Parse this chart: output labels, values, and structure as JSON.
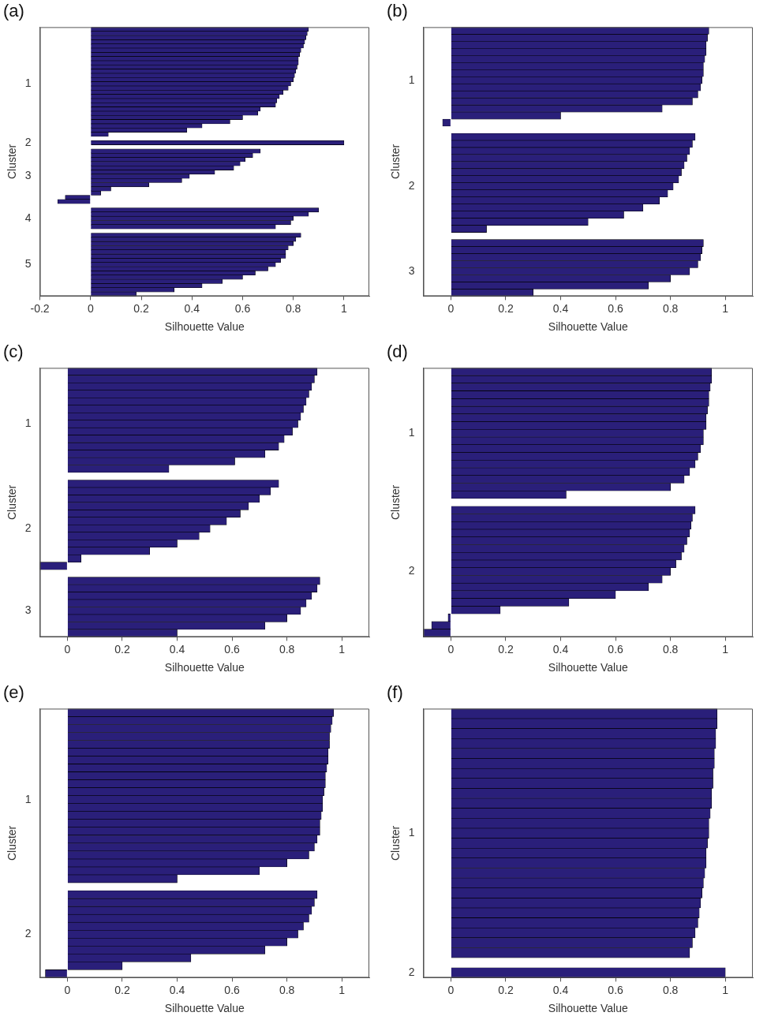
{
  "chart_data": [
    {
      "type": "bar",
      "orientation": "horizontal",
      "title": "(a)",
      "xlabel": "Silhouette Value",
      "ylabel": "Cluster",
      "color": "#2a1f7a",
      "xlim": [
        -0.2,
        1.1
      ],
      "xticks": [
        -0.2,
        0,
        0.2,
        0.4,
        0.6,
        0.8,
        1
      ],
      "categories": [
        null,
        null,
        null,
        null,
        null,
        null,
        null,
        null,
        null,
        null,
        null,
        null,
        null,
        "1",
        null,
        null,
        null,
        null,
        null,
        null,
        null,
        null,
        null,
        null,
        null,
        null,
        null,
        "2",
        null,
        null,
        null,
        null,
        null,
        null,
        null,
        "3",
        null,
        null,
        null,
        null,
        null,
        null,
        null,
        null,
        null,
        "4",
        null,
        null,
        null,
        null,
        null,
        null,
        null,
        null,
        null,
        null,
        "5",
        null,
        null,
        null,
        null,
        null,
        null,
        null
      ],
      "values": [
        0.86,
        0.855,
        0.85,
        0.845,
        0.84,
        0.83,
        0.825,
        0.82,
        0.82,
        0.815,
        0.81,
        0.805,
        0.8,
        0.79,
        0.78,
        0.76,
        0.745,
        0.735,
        0.73,
        0.67,
        0.66,
        0.6,
        0.55,
        0.44,
        0.38,
        0.07,
        null,
        1.0,
        null,
        0.67,
        0.64,
        0.61,
        0.59,
        0.565,
        0.49,
        0.39,
        0.36,
        0.23,
        0.08,
        0.04,
        -0.1,
        -0.13,
        null,
        0.9,
        0.86,
        0.8,
        0.79,
        0.73,
        null,
        0.83,
        0.81,
        0.8,
        0.78,
        0.77,
        0.77,
        0.75,
        0.73,
        0.7,
        0.65,
        0.6,
        0.52,
        0.44,
        0.33,
        0.18
      ]
    },
    {
      "type": "bar",
      "orientation": "horizontal",
      "title": "(b)",
      "xlabel": "Silhouette Value",
      "ylabel": "Cluster",
      "color": "#2a1f7a",
      "xlim": [
        -0.1,
        1.1
      ],
      "xticks": [
        0,
        0.2,
        0.4,
        0.6,
        0.8,
        1
      ],
      "categories": [
        null,
        null,
        null,
        null,
        null,
        null,
        null,
        "1",
        null,
        null,
        null,
        null,
        null,
        null,
        null,
        null,
        null,
        null,
        null,
        null,
        null,
        null,
        "2",
        null,
        null,
        null,
        null,
        null,
        null,
        null,
        null,
        null,
        null,
        null,
        "3",
        null,
        null,
        null
      ],
      "values": [
        0.94,
        0.935,
        0.93,
        0.93,
        0.925,
        0.92,
        0.92,
        0.915,
        0.91,
        0.9,
        0.88,
        0.77,
        0.4,
        -0.03,
        null,
        0.89,
        0.88,
        0.87,
        0.86,
        0.85,
        0.84,
        0.83,
        0.81,
        0.79,
        0.76,
        0.7,
        0.63,
        0.5,
        0.13,
        null,
        0.92,
        0.915,
        0.91,
        0.9,
        0.87,
        0.8,
        0.72,
        0.3
      ]
    },
    {
      "type": "bar",
      "orientation": "horizontal",
      "title": "(c)",
      "xlabel": "Silhouette Value",
      "ylabel": "Cluster",
      "color": "#2a1f7a",
      "xlim": [
        -0.1,
        1.1
      ],
      "xticks": [
        0,
        0.2,
        0.4,
        0.6,
        0.8,
        1
      ],
      "categories": [
        null,
        null,
        null,
        null,
        null,
        null,
        null,
        "1",
        null,
        null,
        null,
        null,
        null,
        null,
        null,
        null,
        null,
        null,
        null,
        null,
        null,
        "2",
        null,
        null,
        null,
        null,
        null,
        null,
        null,
        null,
        null,
        null,
        "3",
        null,
        null,
        null
      ],
      "values": [
        0.91,
        0.9,
        0.89,
        0.88,
        0.87,
        0.86,
        0.85,
        0.84,
        0.82,
        0.79,
        0.77,
        0.72,
        0.61,
        0.37,
        null,
        0.77,
        0.74,
        0.7,
        0.66,
        0.63,
        0.58,
        0.52,
        0.48,
        0.4,
        0.3,
        0.05,
        -0.1,
        null,
        0.92,
        0.91,
        0.89,
        0.87,
        0.85,
        0.8,
        0.72,
        0.4
      ]
    },
    {
      "type": "bar",
      "orientation": "horizontal",
      "title": "(d)",
      "xlabel": "Silhouette Value",
      "ylabel": "Cluster",
      "color": "#2a1f7a",
      "xlim": [
        -0.1,
        1.1
      ],
      "xticks": [
        0,
        0.2,
        0.4,
        0.6,
        0.8,
        1
      ],
      "categories": [
        null,
        null,
        null,
        null,
        null,
        null,
        null,
        null,
        "1",
        null,
        null,
        null,
        null,
        null,
        null,
        null,
        null,
        null,
        null,
        null,
        null,
        null,
        null,
        null,
        null,
        null,
        "2",
        null,
        null,
        null,
        null,
        null,
        null,
        null,
        null
      ],
      "values": [
        0.95,
        0.95,
        0.945,
        0.94,
        0.94,
        0.935,
        0.93,
        0.93,
        0.92,
        0.92,
        0.91,
        0.9,
        0.89,
        0.87,
        0.85,
        0.8,
        0.42,
        null,
        0.89,
        0.88,
        0.875,
        0.87,
        0.86,
        0.85,
        0.84,
        0.82,
        0.8,
        0.77,
        0.72,
        0.6,
        0.43,
        0.18,
        -0.01,
        -0.07,
        -0.1
      ]
    },
    {
      "type": "bar",
      "orientation": "horizontal",
      "title": "(e)",
      "xlabel": "Silhouette Value",
      "ylabel": "Cluster",
      "color": "#2a1f7a",
      "xlim": [
        -0.1,
        1.1
      ],
      "xticks": [
        0,
        0.2,
        0.4,
        0.6,
        0.8,
        1
      ],
      "categories": [
        null,
        null,
        null,
        null,
        null,
        null,
        null,
        null,
        null,
        null,
        null,
        "1",
        null,
        null,
        null,
        null,
        null,
        null,
        null,
        null,
        null,
        null,
        null,
        null,
        null,
        null,
        null,
        null,
        "2",
        null,
        null,
        null,
        null,
        null
      ],
      "values": [
        0.97,
        0.965,
        0.96,
        0.955,
        0.955,
        0.95,
        0.95,
        0.945,
        0.94,
        0.94,
        0.935,
        0.93,
        0.93,
        0.925,
        0.92,
        0.92,
        0.91,
        0.9,
        0.88,
        0.8,
        0.7,
        0.4,
        null,
        0.91,
        0.9,
        0.89,
        0.88,
        0.86,
        0.84,
        0.8,
        0.72,
        0.45,
        0.2,
        -0.08
      ]
    },
    {
      "type": "bar",
      "orientation": "horizontal",
      "title": "(f)",
      "xlabel": "Silhouette Value",
      "ylabel": "Cluster",
      "color": "#2a1f7a",
      "xlim": [
        -0.1,
        1.1
      ],
      "xticks": [
        0,
        0.2,
        0.4,
        0.6,
        0.8,
        1
      ],
      "categories": [
        null,
        null,
        null,
        null,
        null,
        null,
        null,
        null,
        null,
        null,
        null,
        null,
        "1",
        null,
        null,
        null,
        null,
        null,
        null,
        null,
        null,
        null,
        null,
        null,
        null,
        null,
        "2"
      ],
      "values": [
        0.97,
        0.97,
        0.965,
        0.965,
        0.96,
        0.96,
        0.955,
        0.955,
        0.95,
        0.95,
        0.945,
        0.94,
        0.94,
        0.935,
        0.93,
        0.93,
        0.925,
        0.92,
        0.915,
        0.91,
        0.905,
        0.9,
        0.89,
        0.88,
        0.87,
        null,
        1.0
      ]
    }
  ]
}
